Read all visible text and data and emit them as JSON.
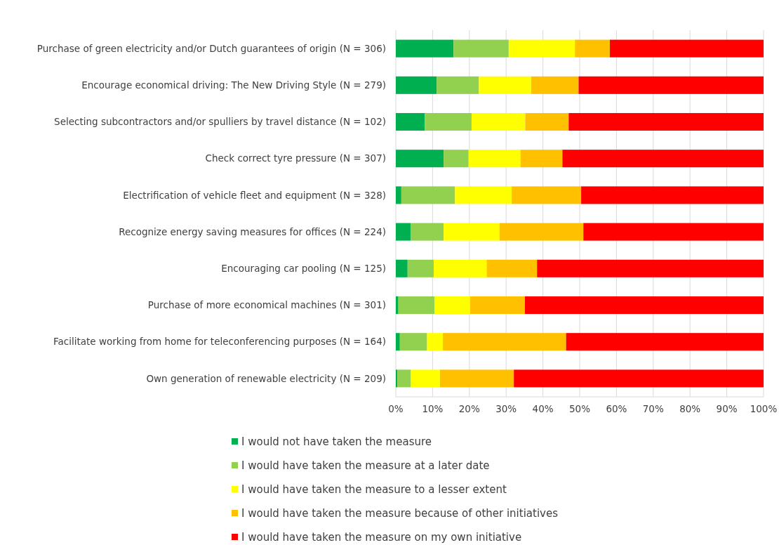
{
  "chart_data": {
    "type": "bar",
    "orientation": "horizontal",
    "stacked": true,
    "categories": [
      "Purchase of green electricity and/or Dutch guarantees of origin (N = 306)",
      "Encourage economical driving: The New Driving Style (N = 279)",
      "Selecting subcontractors and/or spulliers by travel distance (N = 102)",
      "Check correct tyre pressure (N = 307)",
      "Electrification of vehicle fleet and equipment (N = 328)",
      "Recognize energy saving measures for offices (N = 224)",
      "Encouraging car pooling (N = 125)",
      "Purchase of more economical machines (N = 301)",
      "Facilitate working from home for teleconferencing purposes (N = 164)",
      "Own generation of renewable electricity (N = 209)"
    ],
    "series": [
      {
        "name": "I would not have taken the measure",
        "color": "#00b050",
        "values": [
          15.7,
          11.1,
          7.9,
          13.0,
          1.5,
          4.0,
          3.2,
          0.7,
          1.1,
          0.4
        ]
      },
      {
        "name": "I would have taken the measure at a later date",
        "color": "#92d050",
        "values": [
          15.0,
          11.5,
          12.7,
          6.8,
          14.6,
          9.0,
          7.1,
          9.8,
          7.4,
          3.7
        ]
      },
      {
        "name": "I would have taken the measure to a lesser extent",
        "color": "#ffff00",
        "values": [
          18.0,
          14.2,
          14.6,
          14.1,
          15.4,
          15.2,
          14.4,
          9.7,
          4.3,
          7.9
        ]
      },
      {
        "name": "I would have taken the measure because of other initiatives",
        "color": "#ffc000",
        "values": [
          9.5,
          12.9,
          11.8,
          11.4,
          18.9,
          22.8,
          13.7,
          14.9,
          33.5,
          20.1
        ]
      },
      {
        "name": "I would have taken the measure on my own initiative",
        "color": "#ff0000",
        "values": [
          41.8,
          50.3,
          53.0,
          54.7,
          49.6,
          49.0,
          61.6,
          64.9,
          53.7,
          67.9
        ]
      }
    ],
    "xlim": [
      0,
      100
    ],
    "xticks": [
      {
        "value": 0,
        "label": "0%"
      },
      {
        "value": 10,
        "label": "10%"
      },
      {
        "value": 20,
        "label": "20%"
      },
      {
        "value": 30,
        "label": "30%"
      },
      {
        "value": 40,
        "label": "40%"
      },
      {
        "value": 50,
        "label": "50%"
      },
      {
        "value": 60,
        "label": "60%"
      },
      {
        "value": 70,
        "label": "70%"
      },
      {
        "value": 80,
        "label": "80%"
      },
      {
        "value": 90,
        "label": "90%"
      },
      {
        "value": 100,
        "label": "100%"
      }
    ],
    "grid": "x",
    "legend": "bottom"
  }
}
